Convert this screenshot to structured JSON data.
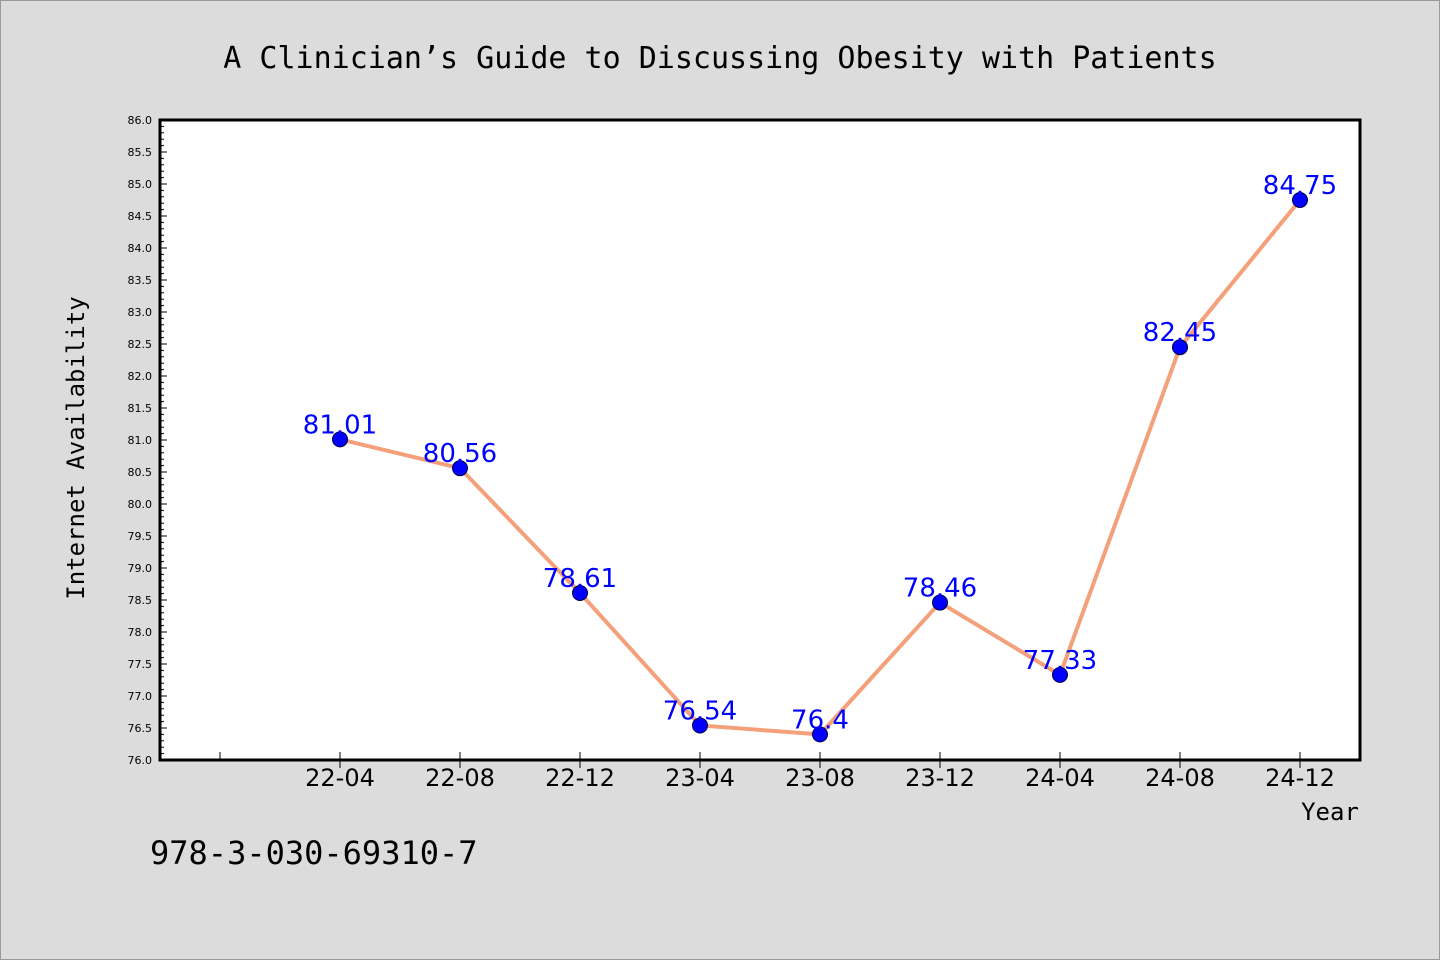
{
  "footer_text": "978-3-030-69310-7",
  "colors": {
    "background": "#dcdcdc",
    "plot_background": "#ffffff",
    "line": "#f4a07a",
    "marker": "#0000ff",
    "data_label": "#0000ff"
  },
  "chart_data": {
    "type": "line",
    "title": "A Clinician’s Guide to Discussing Obesity with Patients",
    "xlabel": "Year",
    "ylabel": "Internet Availability",
    "categories": [
      "22-04",
      "22-08",
      "22-12",
      "23-04",
      "23-08",
      "23-12",
      "24-04",
      "24-08",
      "24-12"
    ],
    "series": [
      {
        "values": [
          81.01,
          80.56,
          78.61,
          76.54,
          76.4,
          78.46,
          77.33,
          82.45,
          84.75
        ],
        "labels": [
          "81.01",
          "80.56",
          "78.61",
          "76.54",
          "76.4",
          "78.46",
          "77.33",
          "82.45",
          "84.75"
        ]
      }
    ],
    "ylim": [
      76.0,
      86.0
    ],
    "yticks": [
      "76.0",
      "76.5",
      "77.0",
      "77.5",
      "78.0",
      "78.5",
      "79.0",
      "79.5",
      "80.0",
      "80.5",
      "81.0",
      "81.5",
      "82.0",
      "82.5",
      "83.0",
      "83.5",
      "84.0",
      "84.5",
      "85.0",
      "85.5",
      "86.0"
    ],
    "grid": false,
    "legend": "none"
  }
}
